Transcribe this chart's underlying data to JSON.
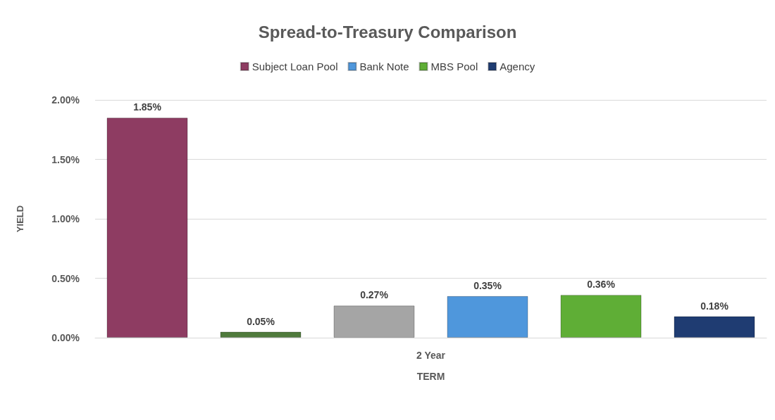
{
  "chart_data": {
    "type": "bar",
    "title": "Spread-to-Treasury Comparison",
    "xlabel": "TERM",
    "ylabel": "YIELD",
    "categories": [
      "2 Year"
    ],
    "series": [
      {
        "name": "Subject Loan Pool",
        "color": "#8e3c62",
        "values": [
          1.85
        ],
        "value_labels": [
          "1.85%"
        ]
      },
      {
        "color": "#4f7a3c",
        "values": [
          0.05
        ],
        "value_labels": [
          "0.05%"
        ]
      },
      {
        "color": "#a5a5a5",
        "values": [
          0.27
        ],
        "value_labels": [
          "0.27%"
        ]
      },
      {
        "name": "Bank Note",
        "color": "#4f97dc",
        "values": [
          0.35
        ],
        "value_labels": [
          "0.35%"
        ]
      },
      {
        "name": "MBS Pool",
        "color": "#5fae36",
        "values": [
          0.36
        ],
        "value_labels": [
          "0.36%"
        ]
      },
      {
        "name": "Agency",
        "color": "#1f3c72",
        "values": [
          0.18
        ],
        "value_labels": [
          "0.18%"
        ]
      }
    ],
    "ylim": [
      0,
      2
    ],
    "yticks": [
      {
        "value": 0,
        "label": "0.00%"
      },
      {
        "value": 0.5,
        "label": "0.50%"
      },
      {
        "value": 1,
        "label": "1.00%"
      },
      {
        "value": 1.5,
        "label": "1.50%"
      },
      {
        "value": 2,
        "label": "2.00%"
      }
    ],
    "grid": "y",
    "legend": "top"
  }
}
